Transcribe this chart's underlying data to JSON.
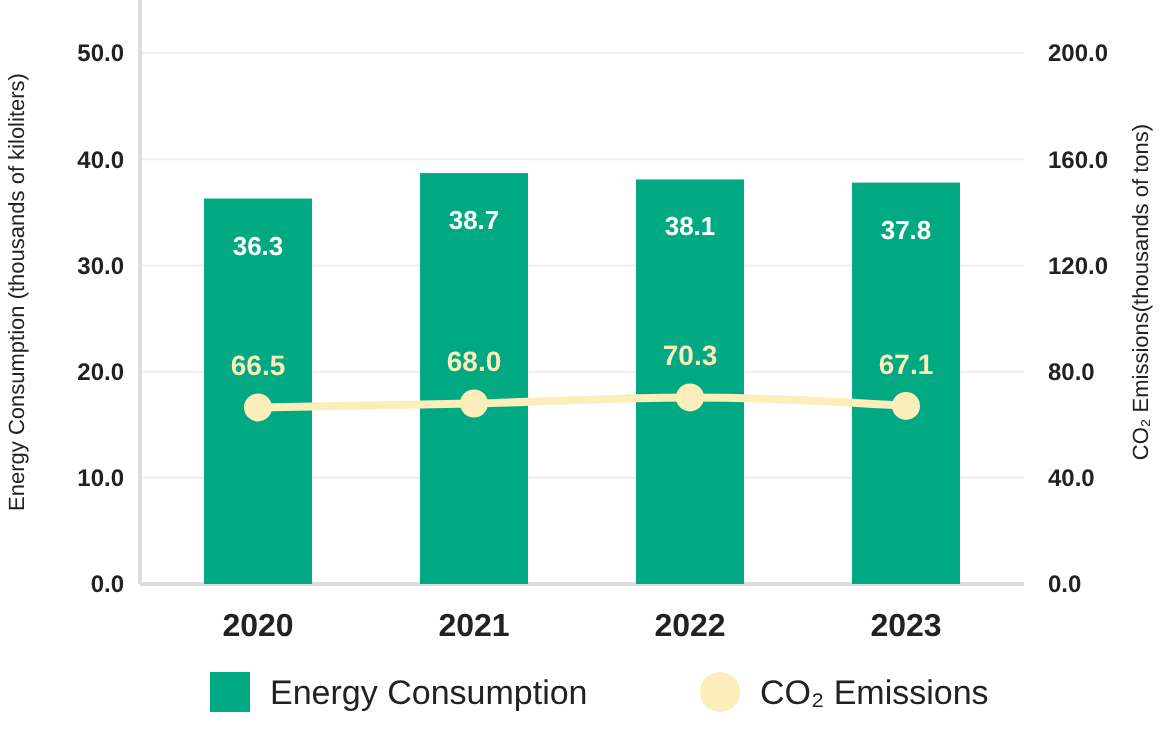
{
  "chart_data": {
    "type": "bar",
    "categories": [
      "2020",
      "2021",
      "2022",
      "2023"
    ],
    "series": [
      {
        "name": "Energy Consumption",
        "color": "#00a982",
        "values": [
          36.3,
          38.7,
          38.1,
          37.8
        ],
        "value_labels": [
          "36.3",
          "38.7",
          "38.1",
          "37.8"
        ]
      },
      {
        "name": "CO₂ Emissions",
        "type": "line",
        "axis": "y2",
        "color": "#fbeebb",
        "values": [
          66.5,
          68.0,
          70.3,
          67.1
        ],
        "value_labels": [
          "66.5",
          "68.0",
          "70.3",
          "67.1"
        ]
      }
    ],
    "ylabel": "Energy Consumption (thousands of kiloliters)",
    "y2label": "CO₂ Emissions(thousands of tons)",
    "ylim": [
      0,
      55
    ],
    "yticks": [
      {
        "value": 0,
        "label": "0.0"
      },
      {
        "value": 10,
        "label": "10.0"
      },
      {
        "value": 20,
        "label": "20.0"
      },
      {
        "value": 30,
        "label": "30.0"
      },
      {
        "value": 40,
        "label": "40.0"
      },
      {
        "value": 50,
        "label": "50.0"
      }
    ],
    "y2lim": [
      0,
      220
    ],
    "y2ticks": [
      {
        "value": 0,
        "label": "0.0"
      },
      {
        "value": 40,
        "label": "40.0"
      },
      {
        "value": 80,
        "label": "80.0"
      },
      {
        "value": 120,
        "label": "120.0"
      },
      {
        "value": 160,
        "label": "160.0"
      },
      {
        "value": 200,
        "label": "200.0"
      }
    ],
    "grid": "y",
    "legend": "bottom",
    "marker": "circle",
    "line_style": "solid"
  }
}
